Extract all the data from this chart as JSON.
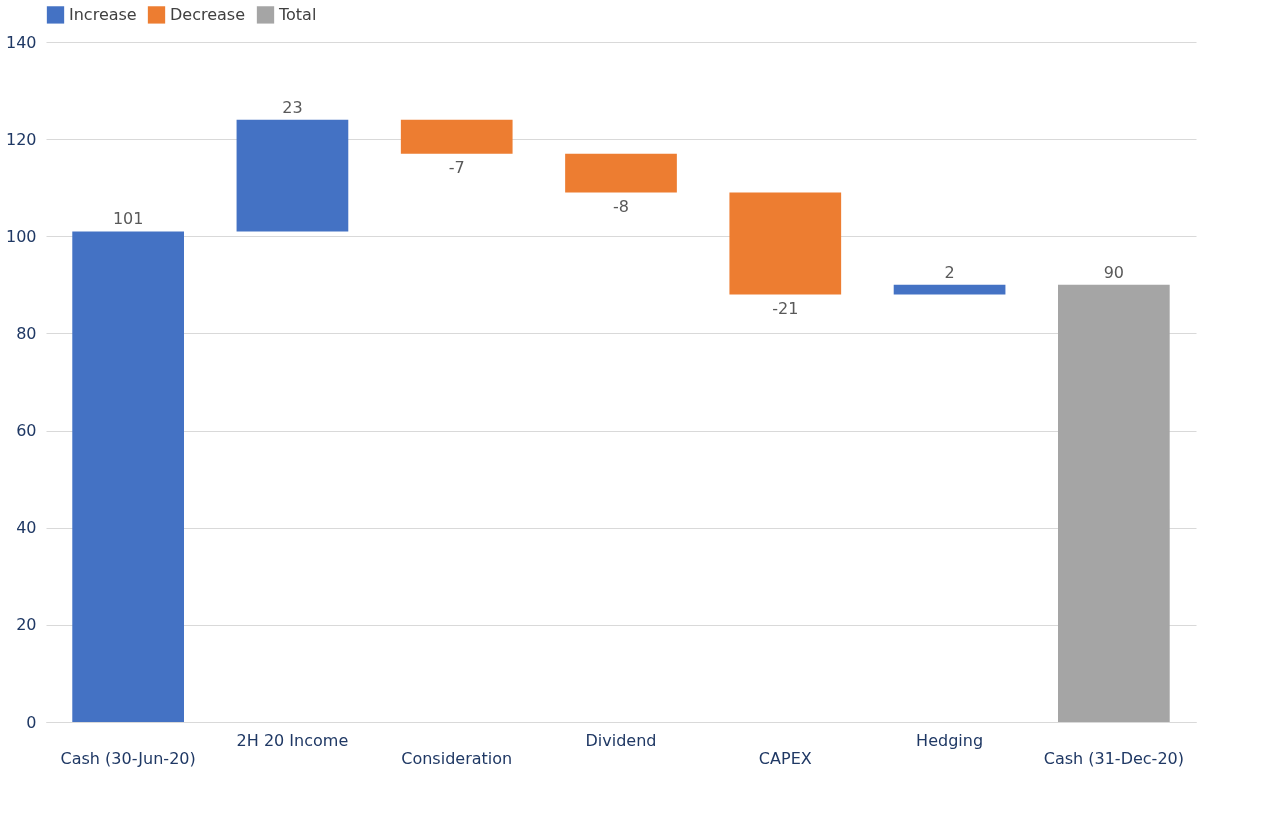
{
  "chart_data": {
    "type": "bar",
    "categories": [
      "Cash (30-Jun-20)",
      "2H 20 Income",
      "Consideration",
      "Dividend",
      "CAPEX",
      "Hedging",
      "Cash (31-Dec-20)"
    ],
    "series": [
      {
        "name": "Increase",
        "color": "#4472c4",
        "values": [
          101,
          23,
          null,
          null,
          null,
          2,
          null
        ],
        "base": [
          0,
          101,
          null,
          null,
          null,
          88,
          null
        ]
      },
      {
        "name": "Decrease",
        "color": "#ed7d31",
        "values": [
          null,
          null,
          -7,
          -8,
          -21,
          null,
          null
        ],
        "base": [
          null,
          null,
          124,
          117,
          109,
          null,
          null
        ]
      },
      {
        "name": "Total",
        "color": "#a5a5a5",
        "values": [
          null,
          null,
          null,
          null,
          null,
          null,
          90
        ],
        "base": [
          null,
          null,
          null,
          null,
          null,
          null,
          0
        ]
      }
    ],
    "ylim": [
      0,
      140
    ],
    "yticks": [
      0,
      20,
      40,
      60,
      80,
      100,
      120,
      140
    ],
    "grid": "y",
    "legend": "top",
    "data_labels": true
  }
}
